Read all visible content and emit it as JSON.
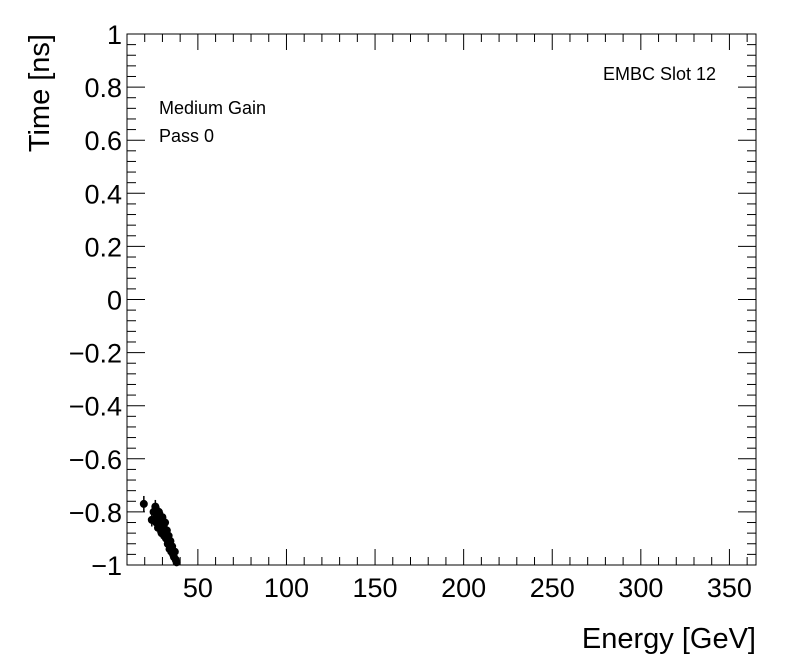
{
  "chart_data": {
    "type": "scatter",
    "title": "",
    "xlabel": "Energy [GeV]",
    "ylabel": "Time [ns]",
    "xlim": [
      10,
      365
    ],
    "ylim": [
      -1,
      1
    ],
    "x_ticks": [
      50,
      100,
      150,
      200,
      250,
      300,
      350
    ],
    "y_ticks": [
      -1,
      -0.8,
      -0.6,
      -0.4,
      -0.2,
      0,
      0.2,
      0.4,
      0.6,
      0.8,
      1
    ],
    "x_tick_labels": [
      "50",
      "100",
      "150",
      "200",
      "250",
      "300",
      "350"
    ],
    "y_tick_labels": [
      "−1",
      "−0.8",
      "−0.6",
      "−0.4",
      "−0.2",
      "0",
      "0.2",
      "0.4",
      "0.6",
      "0.8",
      "1"
    ],
    "grid": false,
    "annotations": {
      "gain": "Medium Gain",
      "pass": "Pass 0",
      "slot": "EMBC Slot 12"
    },
    "marker_color": "#000000",
    "series": [
      {
        "points": [
          {
            "x": 19.5,
            "y": -0.77,
            "ey": 0.03,
            "ex": 2.0
          },
          {
            "x": 24.0,
            "y": -0.83,
            "ey": 0.025
          },
          {
            "x": 25.0,
            "y": -0.8,
            "ey": 0.02
          },
          {
            "x": 26.0,
            "y": -0.78,
            "ey": 0.025
          },
          {
            "x": 26.5,
            "y": -0.84,
            "ey": 0.02
          },
          {
            "x": 27.0,
            "y": -0.82,
            "ey": 0.02
          },
          {
            "x": 27.5,
            "y": -0.86,
            "ey": 0.02
          },
          {
            "x": 28.0,
            "y": -0.8,
            "ey": 0.02
          },
          {
            "x": 28.5,
            "y": -0.85,
            "ey": 0.02
          },
          {
            "x": 29.0,
            "y": -0.83,
            "ey": 0.02
          },
          {
            "x": 29.5,
            "y": -0.88,
            "ey": 0.02
          },
          {
            "x": 30.0,
            "y": -0.82,
            "ey": 0.02
          },
          {
            "x": 30.5,
            "y": -0.86,
            "ey": 0.02
          },
          {
            "x": 31.0,
            "y": -0.89,
            "ey": 0.02
          },
          {
            "x": 31.5,
            "y": -0.84,
            "ey": 0.02
          },
          {
            "x": 32.0,
            "y": -0.9,
            "ey": 0.02
          },
          {
            "x": 32.5,
            "y": -0.87,
            "ey": 0.02
          },
          {
            "x": 33.0,
            "y": -0.92,
            "ey": 0.02
          },
          {
            "x": 33.5,
            "y": -0.89,
            "ey": 0.02
          },
          {
            "x": 34.0,
            "y": -0.94,
            "ey": 0.02
          },
          {
            "x": 34.5,
            "y": -0.91,
            "ey": 0.02
          },
          {
            "x": 35.0,
            "y": -0.95,
            "ey": 0.02
          },
          {
            "x": 35.5,
            "y": -0.93,
            "ey": 0.02
          },
          {
            "x": 36.0,
            "y": -0.96,
            "ey": 0.02
          },
          {
            "x": 36.5,
            "y": -0.97,
            "ey": 0.02
          },
          {
            "x": 37.0,
            "y": -0.95,
            "ey": 0.02
          },
          {
            "x": 37.5,
            "y": -0.98,
            "ey": 0.015
          },
          {
            "x": 38.0,
            "y": -0.99,
            "ey": 0.01
          }
        ]
      }
    ]
  }
}
